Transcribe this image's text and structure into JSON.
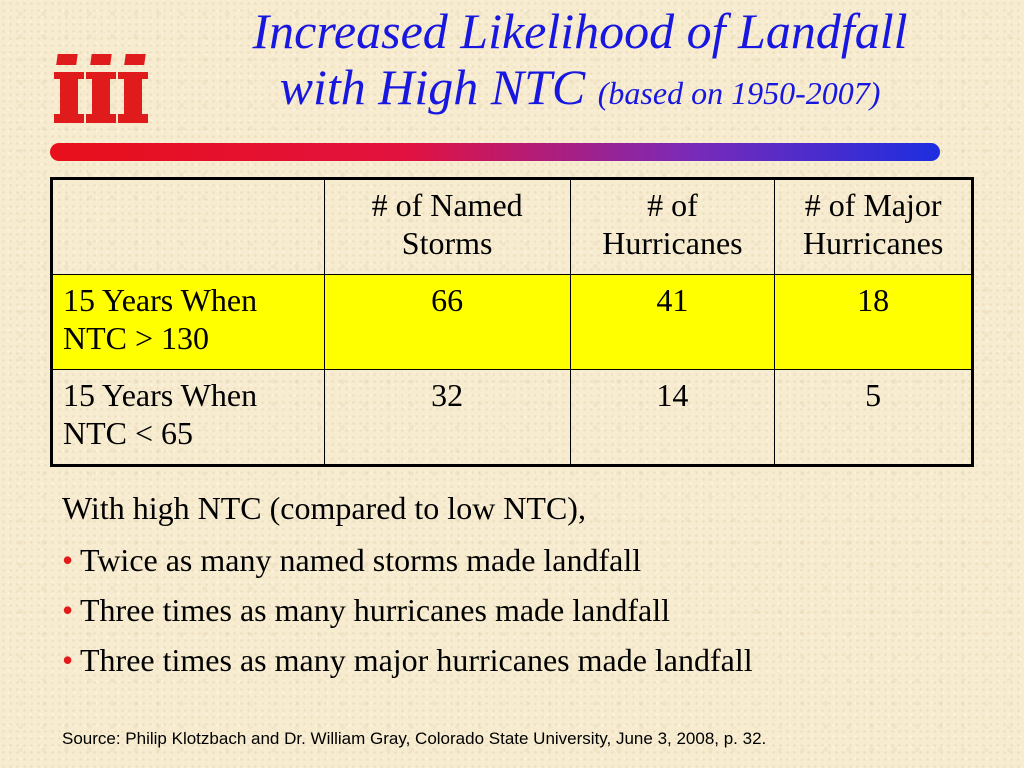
{
  "logo": {
    "icon": "iii-logo",
    "text": "iii",
    "color": "#e01b1b"
  },
  "title": {
    "line1": "Increased Likelihood of Landfall",
    "line2": "with High NTC",
    "subtitle": "(based on 1950-2007)",
    "color": "#1717e0"
  },
  "table": {
    "headers": [
      "",
      "# of Named Storms",
      "# of Hurricanes",
      "# of Major Hurricanes"
    ],
    "rows": [
      {
        "label": "15 Years When NTC > 130",
        "named_storms": "66",
        "hurricanes": "41",
        "major_hurricanes": "18",
        "highlight": "#ffff00"
      },
      {
        "label": "15 Years When NTC < 65",
        "named_storms": "32",
        "hurricanes": "14",
        "major_hurricanes": "5"
      }
    ]
  },
  "bullets": {
    "intro": "With high NTC (compared to low NTC),",
    "bullet_char": "•",
    "bullet_color": "#e21a1a",
    "items": [
      "Twice as many named storms made landfall",
      "Three times as many hurricanes made landfall",
      "Three times as many major hurricanes made landfall"
    ]
  },
  "source": "Source: Philip Klotzbach and Dr. William Gray, Colorado State University, June 3, 2008, p. 32."
}
